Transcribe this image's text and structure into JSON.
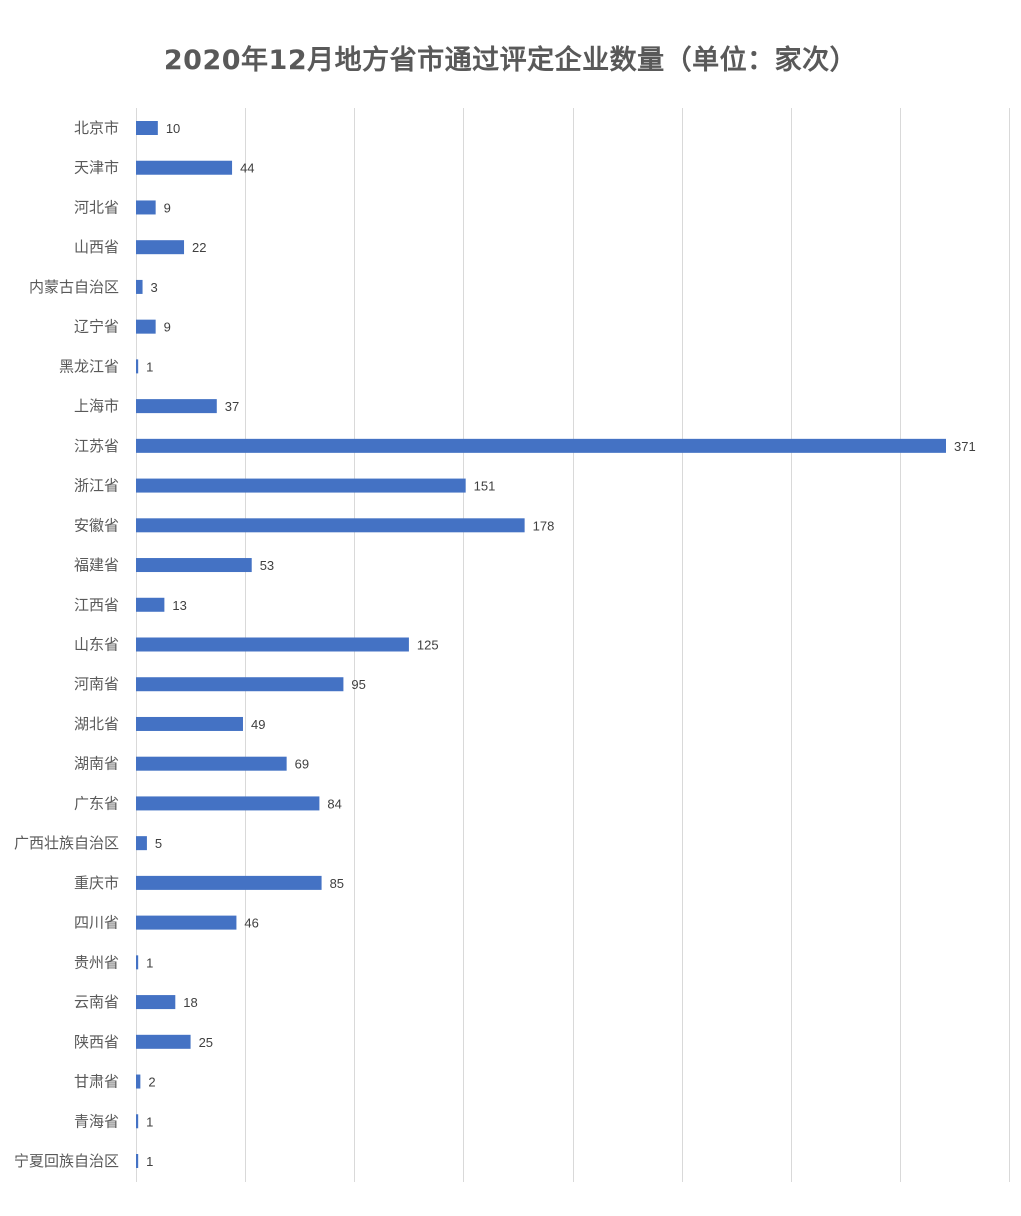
{
  "colors": {
    "bar": "#4472c4",
    "grid": "#d9d9d9",
    "title": "#595959",
    "label": "#595959"
  },
  "chart_data": {
    "type": "bar",
    "orientation": "horizontal",
    "title": "2020年12月地方省市通过评定企业数量（单位：家次）",
    "xlabel": "",
    "ylabel": "",
    "xlim": [
      0,
      400
    ],
    "grid": true,
    "legend": "none",
    "categories": [
      "北京市",
      "天津市",
      "河北省",
      "山西省",
      "内蒙古自治区",
      "辽宁省",
      "黑龙江省",
      "上海市",
      "江苏省",
      "浙江省",
      "安徽省",
      "福建省",
      "江西省",
      "山东省",
      "河南省",
      "湖北省",
      "湖南省",
      "广东省",
      "广西壮族自治区",
      "重庆市",
      "四川省",
      "贵州省",
      "云南省",
      "陕西省",
      "甘肃省",
      "青海省",
      "宁夏回族自治区"
    ],
    "values": [
      10,
      44,
      9,
      22,
      3,
      9,
      1,
      37,
      371,
      151,
      178,
      53,
      13,
      125,
      95,
      49,
      69,
      84,
      5,
      85,
      46,
      1,
      18,
      25,
      2,
      1,
      1
    ]
  }
}
